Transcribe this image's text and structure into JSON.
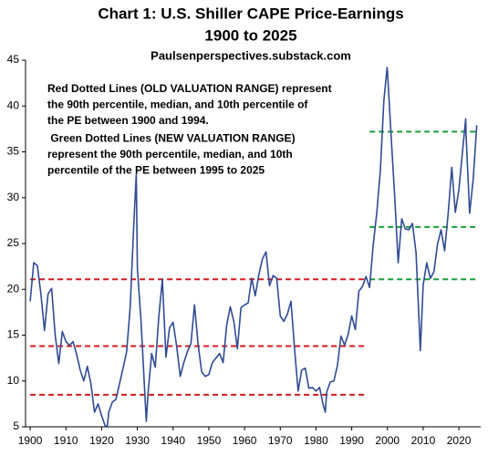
{
  "chart_data": {
    "type": "line",
    "title": [
      "Chart 1: U.S. Shiller CAPE Price-Earnings",
      "1900 to 2025"
    ],
    "subtitle": "Paulsenperspectives.substack.com",
    "annotations": [
      {
        "color": "#d7191c",
        "lines": [
          "Red Dotted Lines (OLD VALUATION RANGE) represent",
          "the 90th percentile, median, and 10th percentile of",
          "the PE between 1900 and 1994."
        ]
      },
      {
        "color": "#1a9e3a",
        "lines": [
          " Green Dotted Lines (NEW VALUATION RANGE)",
          "represent the 90th percentile, median, and 10th",
          "percentile of the PE between 1995 to 2025"
        ]
      }
    ],
    "reference_lines": [
      {
        "color": "#d7191c",
        "start": 1900,
        "end": 1994,
        "values": [
          21.1,
          13.8,
          8.5
        ]
      },
      {
        "color": "#1a9e3a",
        "start": 1995,
        "end": 2025,
        "values": [
          37.2,
          26.8,
          21.1
        ]
      }
    ],
    "color": "#2f4b94",
    "x": [
      1900,
      1901,
      1902,
      1903,
      1904,
      1905,
      1906,
      1907,
      1908,
      1909,
      1910,
      1911,
      1912,
      1913,
      1914,
      1915,
      1916,
      1917,
      1918,
      1919,
      1920,
      1921,
      1921.6,
      1922,
      1923,
      1924,
      1925,
      1926,
      1927,
      1928,
      1929,
      1929.7,
      1930,
      1931,
      1932,
      1932.5,
      1933,
      1934,
      1935,
      1936,
      1937,
      1938,
      1939,
      1940,
      1941,
      1942,
      1943,
      1944,
      1945,
      1946,
      1947,
      1948,
      1949,
      1950,
      1951,
      1952,
      1953,
      1954,
      1955,
      1956,
      1957,
      1958,
      1959,
      1960,
      1961,
      1962,
      1963,
      1964,
      1965,
      1966,
      1967,
      1968,
      1969,
      1970,
      1971,
      1972,
      1973,
      1974,
      1975,
      1976,
      1977,
      1978,
      1979,
      1980,
      1981,
      1982,
      1982.6,
      1983,
      1984,
      1985,
      1986,
      1987,
      1988,
      1989,
      1990,
      1991,
      1992,
      1993,
      1994,
      1995,
      1996,
      1997,
      1998,
      1999,
      1999.9,
      2000,
      2001,
      2002,
      2003,
      2004,
      2005,
      2006,
      2007,
      2008,
      2009,
      2009.2,
      2010,
      2011,
      2012,
      2013,
      2014,
      2015,
      2016,
      2017,
      2018,
      2019,
      2020,
      2021,
      2021.9,
      2022,
      2023,
      2024,
      2025
    ],
    "values": [
      18.7,
      22.9,
      22.6,
      19.5,
      15.5,
      19.5,
      20.1,
      15.0,
      11.9,
      15.4,
      14.3,
      13.9,
      14.3,
      12.9,
      11.2,
      10.0,
      11.6,
      9.7,
      6.6,
      7.5,
      6.2,
      5.1,
      5.1,
      6.6,
      7.7,
      8.0,
      9.7,
      11.4,
      13.2,
      18.1,
      27.1,
      32.6,
      22.3,
      16.7,
      9.3,
      5.6,
      8.7,
      13.0,
      11.5,
      17.0,
      21.1,
      12.6,
      15.8,
      16.4,
      13.8,
      10.5,
      12.0,
      13.2,
      14.1,
      18.3,
      14.0,
      11.0,
      10.5,
      10.7,
      12.0,
      12.5,
      13.0,
      12.0,
      16.1,
      18.1,
      16.5,
      13.5,
      18.0,
      18.3,
      18.5,
      21.2,
      19.3,
      21.6,
      23.3,
      24.1,
      20.4,
      21.5,
      21.2,
      17.1,
      16.5,
      17.3,
      18.7,
      13.5,
      8.9,
      11.2,
      11.4,
      9.2,
      9.3,
      8.9,
      9.3,
      7.4,
      6.6,
      8.8,
      9.9,
      10.0,
      11.7,
      14.9,
      13.9,
      15.1,
      17.1,
      15.6,
      19.8,
      20.3,
      21.4,
      20.2,
      24.8,
      28.3,
      32.9,
      40.6,
      44.2,
      43.8,
      36.9,
      30.3,
      22.9,
      27.7,
      26.6,
      26.5,
      27.2,
      24.0,
      15.2,
      13.3,
      20.5,
      22.9,
      21.2,
      21.9,
      24.9,
      26.5,
      24.2,
      28.3,
      33.3,
      28.4,
      30.9,
      35.0,
      38.6,
      36.9,
      28.3,
      32.0,
      37.9
    ],
    "xlim": [
      1898.7,
      2026.1
    ],
    "ylim": [
      5,
      45
    ],
    "xticks": [
      1900,
      1910,
      1920,
      1930,
      1940,
      1950,
      1960,
      1970,
      1980,
      1990,
      2000,
      2010,
      2020
    ],
    "yticks": [
      5,
      10,
      15,
      20,
      25,
      30,
      35,
      40,
      45
    ]
  }
}
